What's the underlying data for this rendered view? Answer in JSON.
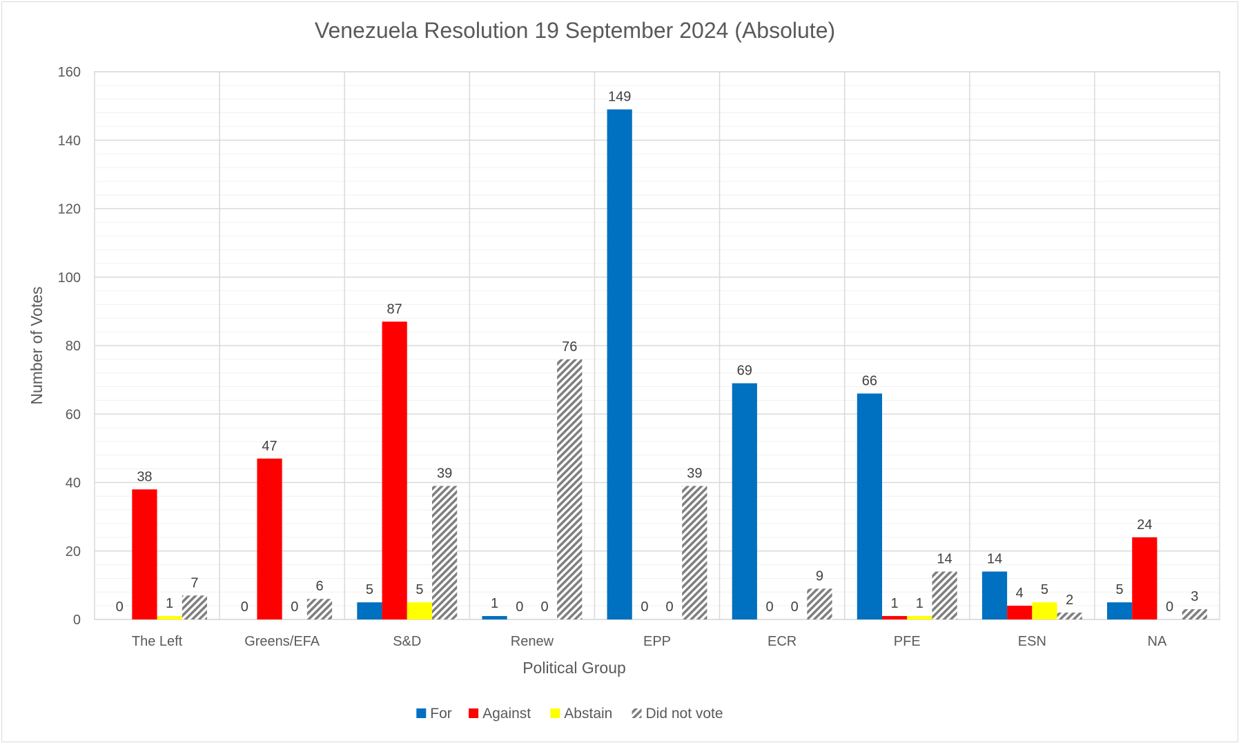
{
  "chart_data": {
    "type": "bar",
    "title": "Venezuela Resolution 19 September 2024 (Absolute)",
    "xlabel": "Political Group",
    "ylabel": "Number of Votes",
    "ylim": [
      0,
      160
    ],
    "y_major_ticks": [
      0,
      20,
      40,
      60,
      80,
      100,
      120,
      140,
      160
    ],
    "y_tick_labels": [
      "0",
      "20",
      "40",
      "60",
      "80",
      "100",
      "120",
      "140",
      "160"
    ],
    "y_minor_step": 4,
    "grid": true,
    "legend_position": "bottom",
    "categories": [
      "The Left",
      "Greens/EFA",
      "S&D",
      "Renew",
      "EPP",
      "ECR",
      "PFE",
      "ESN",
      "NA"
    ],
    "series": [
      {
        "name": "For",
        "color": "#0070c0",
        "pattern": "solid",
        "values": [
          0,
          0,
          5,
          1,
          149,
          69,
          66,
          14,
          5
        ]
      },
      {
        "name": "Against",
        "color": "#ff0000",
        "pattern": "solid",
        "values": [
          38,
          47,
          87,
          0,
          0,
          0,
          1,
          4,
          24
        ]
      },
      {
        "name": "Abstain",
        "color": "#ffff00",
        "pattern": "solid",
        "values": [
          1,
          0,
          5,
          0,
          0,
          0,
          1,
          5,
          0
        ]
      },
      {
        "name": "Did not vote",
        "color": "#7f7f7f",
        "pattern": "hatch",
        "values": [
          7,
          6,
          39,
          76,
          39,
          9,
          14,
          2,
          3
        ]
      }
    ]
  }
}
